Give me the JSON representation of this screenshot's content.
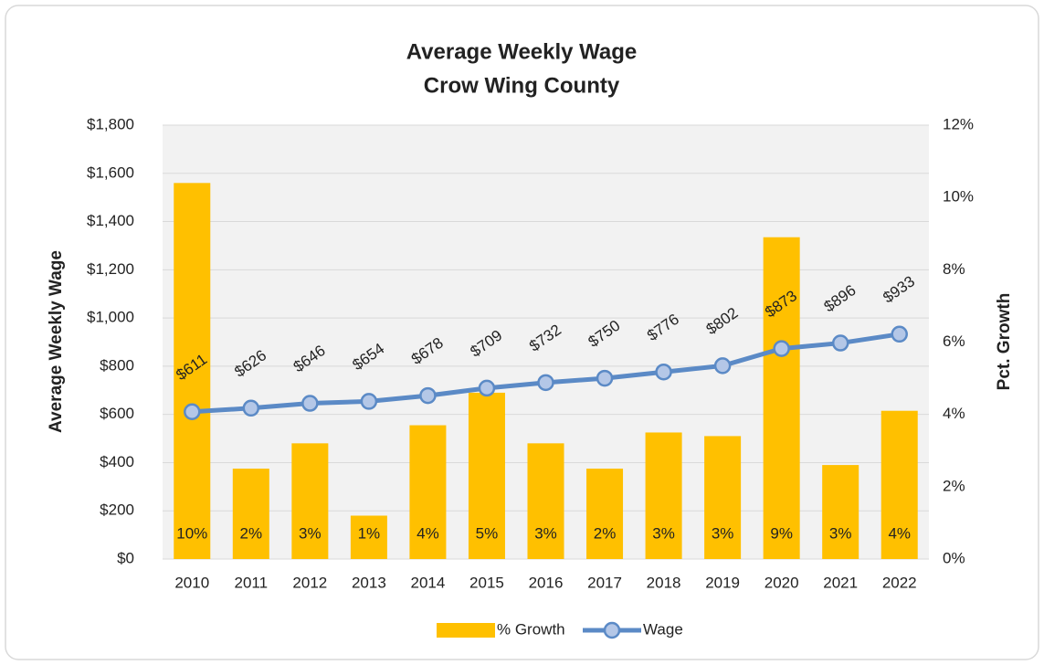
{
  "chart_data": {
    "type": "bar_line",
    "title": "Average Weekly Wage",
    "subtitle": "Crow Wing County",
    "y_label": "Average Weekly Wage",
    "y2_label": "Pct. Growth",
    "categories": [
      "2010",
      "2011",
      "2012",
      "2013",
      "2014",
      "2015",
      "2016",
      "2017",
      "2018",
      "2019",
      "2020",
      "2021",
      "2022"
    ],
    "series": [
      {
        "name": "% Growth",
        "type": "bar",
        "axis": "y2",
        "color": "#ffc000",
        "values": [
          10.4,
          2.5,
          3.2,
          1.2,
          3.7,
          4.6,
          3.2,
          2.5,
          3.5,
          3.4,
          8.9,
          2.6,
          4.1
        ],
        "value_labels": [
          "10%",
          "2%",
          "3%",
          "1%",
          "4%",
          "5%",
          "3%",
          "2%",
          "3%",
          "3%",
          "9%",
          "3%",
          "4%"
        ]
      },
      {
        "name": "Wage",
        "type": "line",
        "axis": "y",
        "color": "#5b8ac6",
        "values": [
          611,
          626,
          646,
          654,
          678,
          709,
          732,
          750,
          776,
          802,
          873,
          896,
          933
        ],
        "value_labels": [
          "$611",
          "$626",
          "$646",
          "$654",
          "$678",
          "$709",
          "$732",
          "$750",
          "$776",
          "$802",
          "$873",
          "$896",
          "$933"
        ]
      }
    ],
    "ylim": [
      0,
      1800
    ],
    "yticks": [
      {
        "value": 0,
        "label": "$0"
      },
      {
        "value": 200,
        "label": "$200"
      },
      {
        "value": 400,
        "label": "$400"
      },
      {
        "value": 600,
        "label": "$600"
      },
      {
        "value": 800,
        "label": "$800"
      },
      {
        "value": 1000,
        "label": "$1,000"
      },
      {
        "value": 1200,
        "label": "$1,200"
      },
      {
        "value": 1400,
        "label": "$1,400"
      },
      {
        "value": 1600,
        "label": "$1,600"
      },
      {
        "value": 1800,
        "label": "$1,800"
      }
    ],
    "y2lim": [
      0,
      12
    ],
    "y2ticks": [
      {
        "value": 0,
        "label": "0%"
      },
      {
        "value": 2,
        "label": "2%"
      },
      {
        "value": 4,
        "label": "4%"
      },
      {
        "value": 6,
        "label": "6%"
      },
      {
        "value": 8,
        "label": "8%"
      },
      {
        "value": 10,
        "label": "10%"
      },
      {
        "value": 12,
        "label": "12%"
      }
    ],
    "grid": true,
    "legend": "bottom"
  }
}
